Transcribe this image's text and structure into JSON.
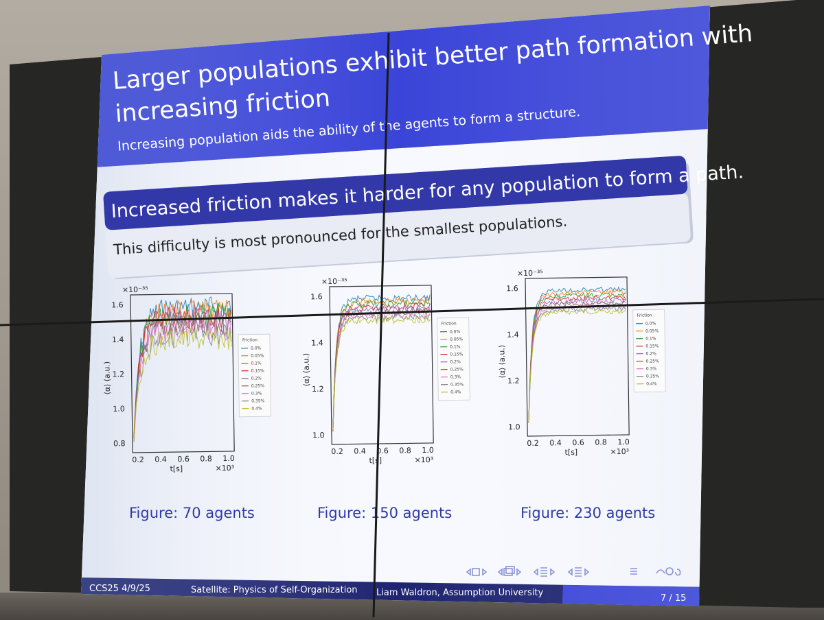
{
  "slide": {
    "title_line1": "Larger populations exhibit better path formation with",
    "title_line2": "increasing friction",
    "subtitle": "Increasing population aids the ability of the agents to form a structure.",
    "block_title": "Increased friction makes it harder for any population to form a path.",
    "block_body": "This difficulty is most pronounced for the smallest populations."
  },
  "footer": {
    "conference": "CCS25 4/9/25",
    "session": "Satellite: Physics of Self-Organization",
    "author": "Liam Waldron, Assumption University",
    "page": "7 / 15"
  },
  "colors": {
    "beamer_blue": "#3a44d8",
    "footer_dark": "#1e2470",
    "block_blue": "#3338a8"
  },
  "nav_icons": [
    "nav-frame-icon",
    "nav-subsection-icon",
    "nav-section-icon",
    "nav-align-icon",
    "nav-search-icon"
  ],
  "legend_title": "Friction",
  "legend_items": [
    "0.0%",
    "0.05%",
    "0.1%",
    "0.15%",
    "0.2%",
    "0.25%",
    "0.3%",
    "0.35%",
    "0.4%"
  ],
  "figures": [
    {
      "caption": "Figure: 70 agents",
      "ylabel": "⟨α⟩ (a.u.)",
      "xlabel": "t[s]",
      "scale_y": "×10⁻³⁵",
      "scale_x": "×10³",
      "yticks": [
        "1.6",
        "1.4",
        "1.2",
        "1.0",
        "0.8"
      ],
      "xticks": [
        "0.2",
        "0.4",
        "0.6",
        "0.8",
        "1.0"
      ]
    },
    {
      "caption": "Figure: 150 agents",
      "ylabel": "⟨α⟩ (a.u.)",
      "xlabel": "t[s]",
      "scale_y": "×10⁻³⁵",
      "scale_x": "×10³",
      "yticks": [
        "1.6",
        "1.4",
        "1.2",
        "1.0"
      ],
      "xticks": [
        "0.2",
        "0.4",
        "0.6",
        "0.8",
        "1.0"
      ]
    },
    {
      "caption": "Figure: 230 agents",
      "ylabel": "⟨α⟩ (a.u.)",
      "xlabel": "t[s]",
      "scale_y": "×10⁻³⁵",
      "scale_x": "×10³",
      "yticks": [
        "1.6",
        "1.4",
        "1.2",
        "1.0"
      ],
      "xticks": [
        "0.2",
        "0.4",
        "0.6",
        "0.8",
        "1.0"
      ]
    }
  ]
}
